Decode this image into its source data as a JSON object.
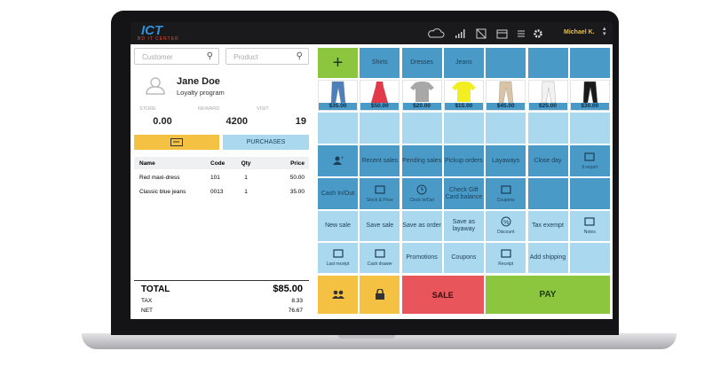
{
  "header": {
    "brand": "ICT",
    "brand_sub": "BD IT CENTER",
    "user": "Michael K."
  },
  "search": {
    "customer": "Customer",
    "product": "Product"
  },
  "customer": {
    "name": "Jane Doe",
    "program": "Loyalty program"
  },
  "stats": [
    {
      "label": "STORE",
      "value": "0.00"
    },
    {
      "label": "REWARD",
      "value": "4200"
    },
    {
      "label": "VISIT",
      "value": "19"
    }
  ],
  "purchases": "PURCHASES",
  "table": {
    "headers": [
      "Name",
      "Code",
      "Qty",
      "Price"
    ],
    "rows": [
      [
        "Red maxi-dress",
        "101",
        "1",
        "50.00"
      ],
      [
        "Classic blue jeans",
        "0013",
        "1",
        "35.00"
      ]
    ]
  },
  "totals": {
    "total_label": "TOTAL",
    "total": "$85.00",
    "tax_label": "TAX",
    "tax": "8.33",
    "net_label": "NET",
    "net": "76.67"
  },
  "tiles": {
    "categories": [
      "Shirts",
      "Dresses",
      "Jeans"
    ],
    "prices": [
      "$35.00",
      "$50.00",
      "$20.00",
      "$15.00",
      "$45.00",
      "$25.00",
      "$30.00"
    ],
    "actions1": [
      "Recent sales",
      "Pending sales",
      "Pickup orders",
      "Layaways",
      "Close day",
      "X-report"
    ],
    "actions2": [
      "Cash In/Out",
      "Stock & Price",
      "Clock In/Out",
      "Check Gift Card balance",
      "Coupons"
    ],
    "actions3": [
      "New sale",
      "Save sale",
      "Save as order",
      "Save as layaway",
      "Discount",
      "Tax exempt",
      "Notes"
    ],
    "actions4": [
      "Last receipt",
      "Cash drawer",
      "Promotions",
      "Coupons",
      "Receipt",
      "Add shipping"
    ],
    "sale": "SALE",
    "pay": "PAY"
  }
}
